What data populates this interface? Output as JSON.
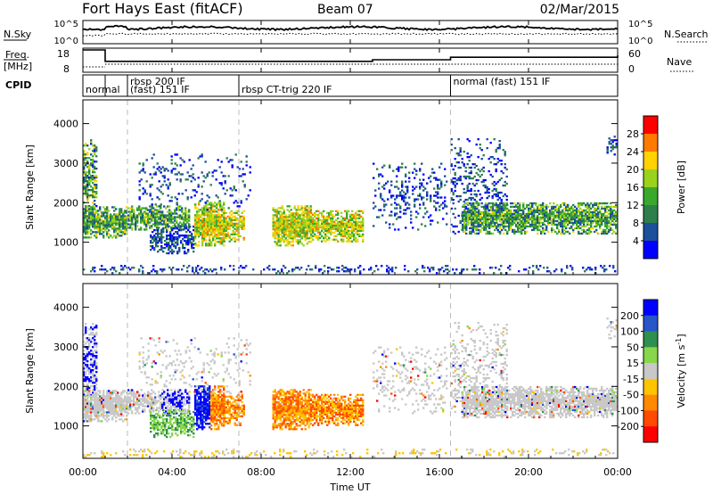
{
  "header": {
    "title": "Fort Hays East (fitACF)",
    "beam": "Beam 07",
    "date": "02/Mar/2015"
  },
  "summary": {
    "nsky": {
      "label": "N.Sky",
      "ytick_top": "10^5",
      "ytick_bottom": "10^0",
      "right_label": "N.Search",
      "right_ytick_top": "10^5",
      "right_ytick_bottom": "10^0"
    },
    "freq": {
      "label_line1": "Freq.",
      "label_line2": "[MHz]",
      "ytick_top": "18",
      "ytick_bottom": "8",
      "right_label": "Nave",
      "right_ytick_top": "60",
      "right_ytick_bottom": "0",
      "step_hours": [
        0,
        1,
        13,
        16.5,
        24
      ],
      "step_values_mhz": [
        18,
        10.5,
        11.5,
        13.2,
        14.5
      ]
    },
    "cpid": {
      "label": "CPID",
      "segments": [
        {
          "label": "normal",
          "start": 0,
          "row": 2
        },
        {
          "label": "rbsp 200 IF",
          "start": 2,
          "row": 1
        },
        {
          "label": "(fast) 151 IF",
          "start": 2,
          "row": 2
        },
        {
          "label": "rbsp CT-trig 220 IF",
          "start": 7,
          "row": 2
        },
        {
          "label": "normal (fast) 151 IF",
          "start": 16.5,
          "row": 1
        }
      ],
      "dividers_hours": [
        1,
        2,
        7,
        16.5
      ]
    }
  },
  "chart_data": [
    {
      "type": "heatmap",
      "name": "power",
      "ylabel": "Slant Range [km]",
      "ylim": [
        180,
        4600
      ],
      "yticks": [
        1000,
        2000,
        3000,
        4000
      ],
      "xlim": [
        0,
        24
      ],
      "colorbar": {
        "label": "Power [dB]",
        "ticks": [
          "28",
          "24",
          "20",
          "16",
          "12",
          "8",
          "4"
        ],
        "colors": [
          "#ff0000",
          "#ff7a00",
          "#ffd200",
          "#9bd21e",
          "#3aa82d",
          "#2e7f4c",
          "#1c4f9c",
          "#0000ff"
        ]
      }
    },
    {
      "type": "heatmap",
      "name": "velocity",
      "ylabel": "Slant Range [km]",
      "ylim": [
        180,
        4600
      ],
      "yticks": [
        1000,
        2000,
        3000,
        4000
      ],
      "xlim": [
        0,
        24
      ],
      "xticks": [
        "00:00",
        "04:00",
        "08:00",
        "12:00",
        "16:00",
        "20:00",
        "00:00"
      ],
      "xlabel": "Time UT",
      "colorbar": {
        "label": "Velocity [m s^-1]",
        "ticks": [
          "200",
          "100",
          "50",
          "15",
          "-15",
          "-50",
          "-100",
          "-200"
        ],
        "colors": [
          "#0000ff",
          "#2855c8",
          "#2e8f4f",
          "#88d64a",
          "#c8c8c8",
          "#ffc400",
          "#ff8a00",
          "#ff4a00",
          "#ff0000"
        ]
      }
    }
  ]
}
